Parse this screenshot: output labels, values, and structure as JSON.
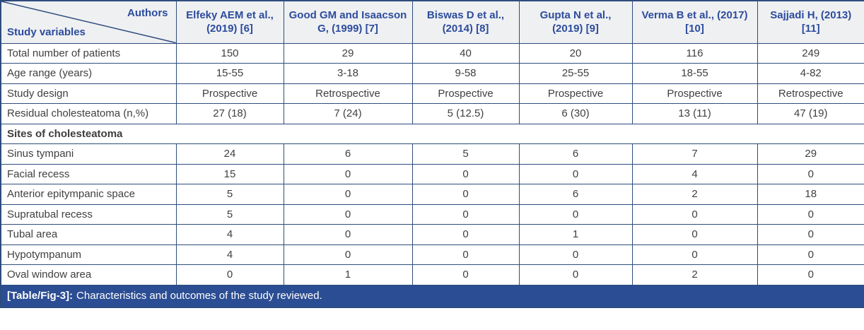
{
  "table": {
    "corner": {
      "top_label": "Authors",
      "bottom_label": "Study variables"
    },
    "columns": [
      "Elfeky AEM et al., (2019) [6]",
      "Good GM and Isaacson G, (1999) [7]",
      "Biswas D et al., (2014) [8]",
      "Gupta N et al., (2019) [9]",
      "Verma B et al., (2017) [10]",
      "Sajjadi H, (2013) [11]"
    ],
    "rows": [
      {
        "label": "Total number of patients",
        "values": [
          "150",
          "29",
          "40",
          "20",
          "116",
          "249"
        ]
      },
      {
        "label": "Age range (years)",
        "values": [
          "15-55",
          "3-18",
          "9-58",
          "25-55",
          "18-55",
          "4-82"
        ]
      },
      {
        "label": "Study design",
        "values": [
          "Prospective",
          "Retrospective",
          "Prospective",
          "Prospective",
          "Prospective",
          "Retrospective"
        ]
      },
      {
        "label": "Residual cholesteatoma (n,%)",
        "values": [
          "27 (18)",
          "7 (24)",
          "5 (12.5)",
          "6 (30)",
          "13 (11)",
          "47 (19)"
        ]
      }
    ],
    "section_header": "Sites of cholesteatoma",
    "site_rows": [
      {
        "label": "Sinus tympani",
        "values": [
          "24",
          "6",
          "5",
          "6",
          "7",
          "29"
        ]
      },
      {
        "label": "Facial recess",
        "values": [
          "15",
          "0",
          "0",
          "0",
          "4",
          "0"
        ]
      },
      {
        "label": "Anterior epitympanic space",
        "values": [
          "5",
          "0",
          "0",
          "6",
          "2",
          "18"
        ]
      },
      {
        "label": "Supratubal recess",
        "values": [
          "5",
          "0",
          "0",
          "0",
          "0",
          "0"
        ]
      },
      {
        "label": "Tubal area",
        "values": [
          "4",
          "0",
          "0",
          "1",
          "0",
          "0"
        ]
      },
      {
        "label": "Hypotympanum",
        "values": [
          "4",
          "0",
          "0",
          "0",
          "0",
          "0"
        ]
      },
      {
        "label": "Oval window area",
        "values": [
          "0",
          "1",
          "0",
          "0",
          "2",
          "0"
        ]
      }
    ],
    "caption": {
      "tag": "[Table/Fig-3]:",
      "text": "Characteristics and outcomes of the study reviewed."
    }
  },
  "colors": {
    "border": "#2e4c7c",
    "header_text": "#2c4c9c",
    "header_bg": "#eff0f2",
    "body_text": "#404040",
    "caption_bg": "#2b4d93",
    "caption_text": "#ffffff"
  }
}
